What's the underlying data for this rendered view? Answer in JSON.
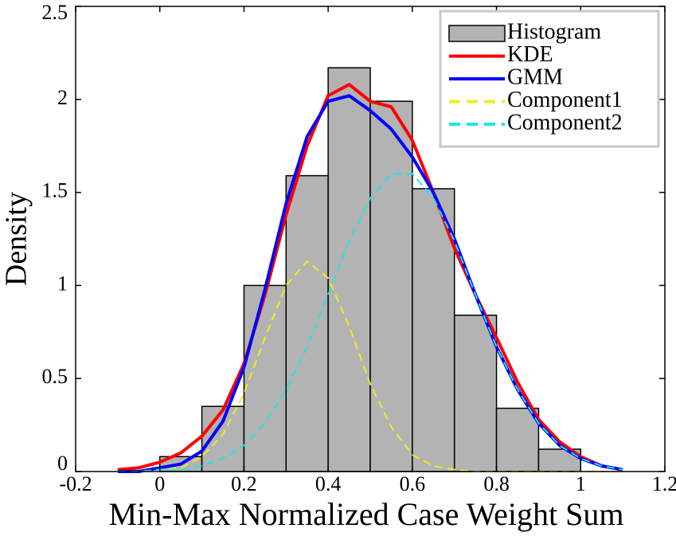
{
  "chart_data": {
    "type": "histogram",
    "xlabel": "Min-Max Normalized Case Weight Sum",
    "ylabel": "Density",
    "xlim": [
      -0.2,
      1.2
    ],
    "xticks": [
      -0.2,
      0,
      0.2,
      0.4,
      0.6,
      0.8,
      1,
      1.2
    ],
    "ylim": [
      0,
      2.5
    ],
    "yticks": [
      0,
      0.5,
      1,
      1.5,
      2,
      2.5
    ],
    "legend": "upper right",
    "histogram": {
      "name": "Histogram",
      "color": "#b3b3b3",
      "bins": [
        0,
        0.1,
        0.2,
        0.3,
        0.4,
        0.5,
        0.6,
        0.7,
        0.8,
        0.9,
        1
      ],
      "counts": [
        0.08,
        0.35,
        1.0,
        1.59,
        2.17,
        1.99,
        1.52,
        0.84,
        0.34,
        0.12
      ]
    },
    "x": [
      -0.1,
      -0.05,
      0,
      0.05,
      0.1,
      0.15,
      0.2,
      0.25,
      0.3,
      0.35,
      0.4,
      0.45,
      0.5,
      0.55,
      0.6,
      0.65,
      0.7,
      0.75,
      0.8,
      0.85,
      0.9,
      0.95,
      1,
      1.05,
      1.1
    ],
    "series": [
      {
        "name": "KDE",
        "color": "#ff0000",
        "linestyle": "solid",
        "values": [
          0.01,
          0.02,
          0.05,
          0.1,
          0.19,
          0.33,
          0.58,
          0.95,
          1.38,
          1.75,
          2.02,
          2.08,
          1.99,
          1.96,
          1.78,
          1.5,
          1.2,
          0.95,
          0.72,
          0.48,
          0.28,
          0.16,
          0.08,
          0.03,
          0.01
        ]
      },
      {
        "name": "GMM",
        "color": "#0000ff",
        "linestyle": "solid",
        "values": [
          0,
          0,
          0.02,
          0.04,
          0.11,
          0.27,
          0.56,
          0.98,
          1.44,
          1.8,
          1.99,
          2.02,
          1.94,
          1.84,
          1.69,
          1.5,
          1.25,
          0.95,
          0.67,
          0.44,
          0.26,
          0.14,
          0.07,
          0.03,
          0.01
        ]
      },
      {
        "name": "Component1",
        "color": "#eeee22",
        "linestyle": "dashed",
        "values": [
          0,
          0,
          0.01,
          0.02,
          0.08,
          0.2,
          0.42,
          0.72,
          1.0,
          1.13,
          1.04,
          0.78,
          0.47,
          0.24,
          0.09,
          0.03,
          0.01,
          0,
          0,
          0,
          0,
          0,
          0,
          0,
          0
        ]
      },
      {
        "name": "Component2",
        "color": "#22e5e5",
        "linestyle": "dashed",
        "values": [
          0,
          0,
          0.01,
          0.01,
          0.03,
          0.07,
          0.14,
          0.26,
          0.44,
          0.67,
          0.95,
          1.24,
          1.47,
          1.6,
          1.6,
          1.47,
          1.24,
          0.95,
          0.67,
          0.44,
          0.26,
          0.14,
          0.07,
          0.03,
          0.01
        ]
      }
    ]
  }
}
